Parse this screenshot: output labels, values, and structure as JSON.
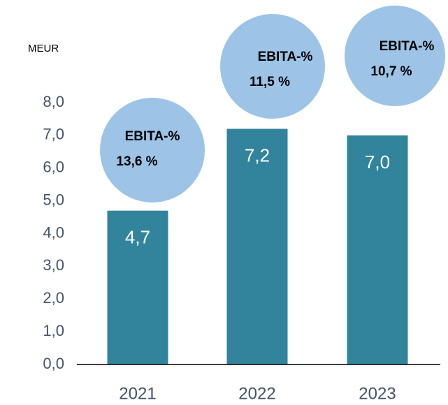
{
  "chart_data": {
    "type": "bar",
    "unit_label": "MEUR",
    "categories": [
      "2021",
      "2022",
      "2023"
    ],
    "values": [
      4.7,
      7.2,
      7.0
    ],
    "value_labels": [
      "4,7",
      "7,2",
      "7,0"
    ],
    "color": "#31849b",
    "ylim": [
      0,
      8
    ],
    "yticks": [
      {
        "value": 0,
        "label": "0,0"
      },
      {
        "value": 1,
        "label": "1,0"
      },
      {
        "value": 2,
        "label": "2,0"
      },
      {
        "value": 3,
        "label": "3,0"
      },
      {
        "value": 4,
        "label": "4,0"
      },
      {
        "value": 5,
        "label": "5,0"
      },
      {
        "value": 6,
        "label": "6,0"
      },
      {
        "value": 7,
        "label": "7,0"
      },
      {
        "value": 8,
        "label": "8,0"
      }
    ],
    "grid": false,
    "annotations": [
      {
        "title": "EBITA-%",
        "text": "13,6 %"
      },
      {
        "title": "EBITA-%",
        "text": "11,5 %"
      },
      {
        "title": "EBITA-%",
        "text": "10,7 %"
      }
    ],
    "annotation_color": "#9dc3e6"
  }
}
